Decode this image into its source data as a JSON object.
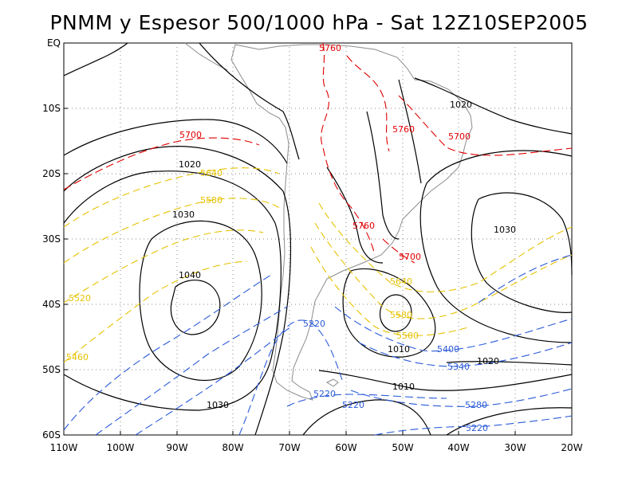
{
  "title": "PNMM y Espesor 500/1000 hPa - Sat 12Z10SEP2005",
  "colors": {
    "pressure": "#000000",
    "thickness_red": "#e00000",
    "thickness_yellow": "#e6c200",
    "thickness_blue": "#2a5ad8",
    "coast": "#8c8c8c",
    "grid": "#888888"
  },
  "axes": {
    "lat_labels": [
      "EQ",
      "10S",
      "20S",
      "30S",
      "40S",
      "50S",
      "60S"
    ],
    "lon_labels": [
      "110W",
      "100W",
      "90W",
      "80W",
      "70W",
      "60W",
      "50W",
      "40W",
      "30W",
      "20W"
    ]
  },
  "pressure_labels": [
    "1020",
    "1030",
    "1040",
    "1030",
    "1030",
    "1020",
    "1010",
    "1010",
    "1020"
  ],
  "thickness_labels_red": [
    "5760",
    "5700",
    "5760",
    "5700",
    "5760",
    "5700"
  ],
  "thickness_labels_yellow": [
    "5640",
    "5580",
    "5520",
    "5460",
    "5640",
    "5580",
    "5500"
  ],
  "thickness_labels_blue": [
    "5220",
    "5400",
    "5340",
    "5220",
    "5220",
    "5280",
    "5220"
  ]
}
